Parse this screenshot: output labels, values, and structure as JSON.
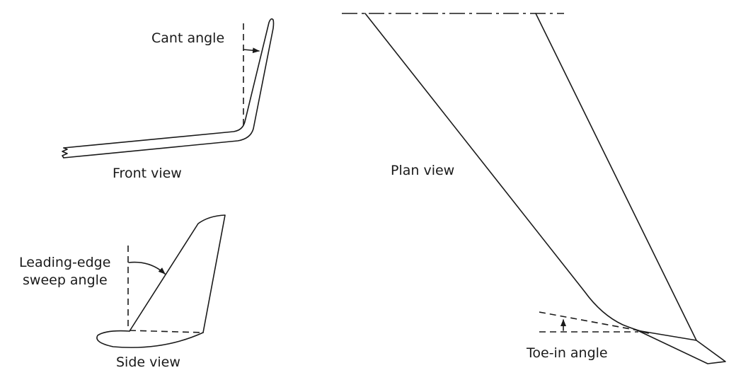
{
  "labels": {
    "cant_angle": "Cant angle",
    "front_view": "Front view",
    "plan_view": "Plan view",
    "leading_edge_line1": "Leading-edge",
    "leading_edge_line2": "sweep angle",
    "side_view": "Side view",
    "toe_in_angle": "Toe-in angle"
  }
}
